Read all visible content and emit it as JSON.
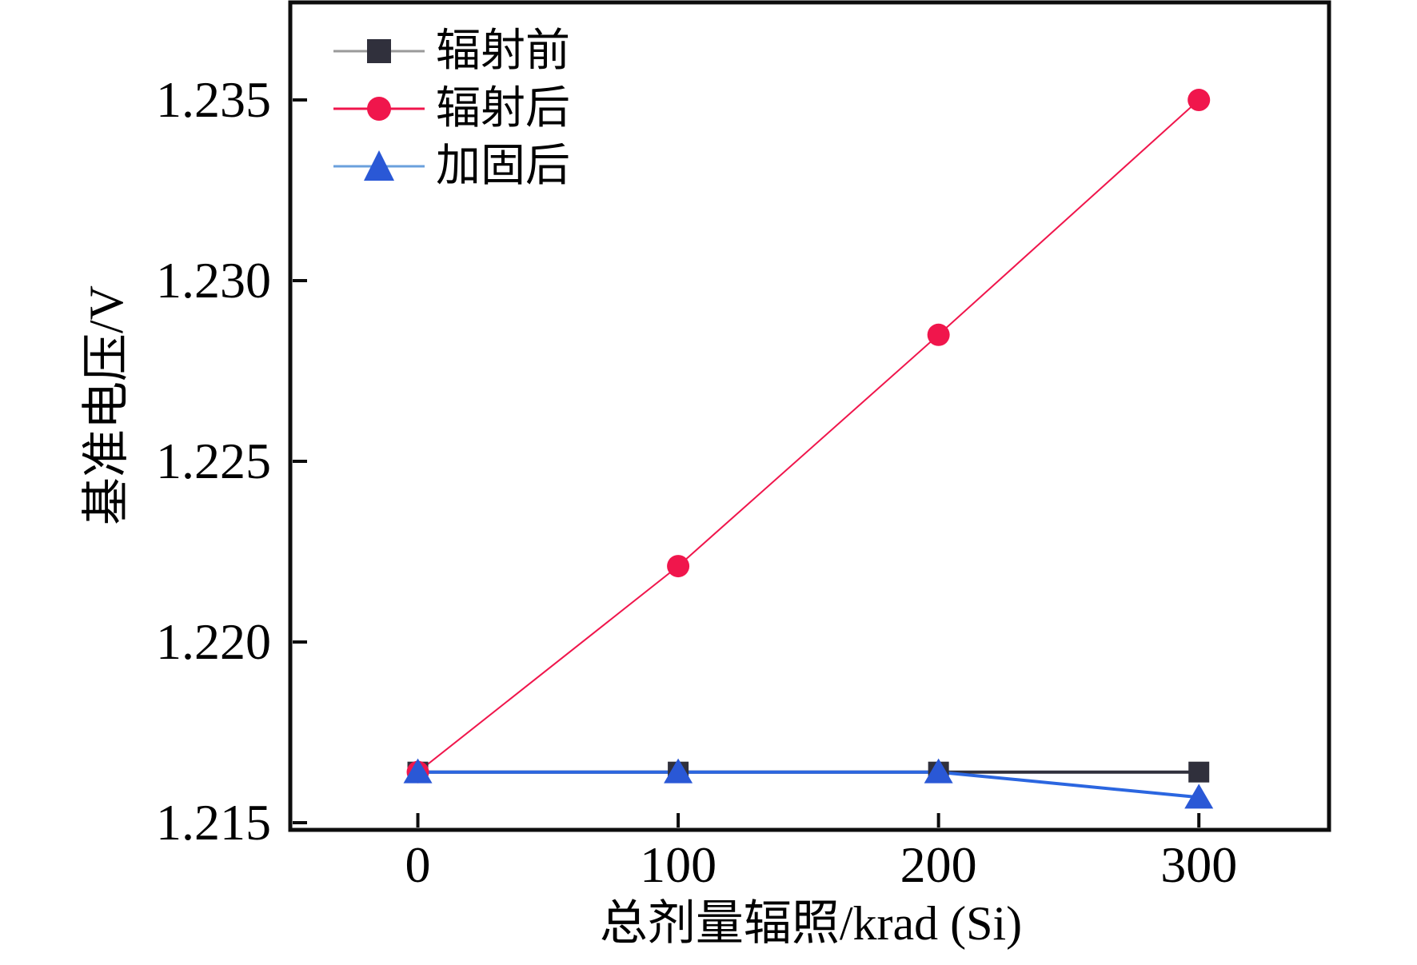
{
  "figure": {
    "background": "#ffffff",
    "axis_color": "#0d0d0d",
    "text_color": "#000000"
  },
  "chart_data": {
    "type": "line",
    "title": "",
    "xlabel": "总剂量辐照/krad (Si)",
    "ylabel": "基准电压/V",
    "x": [
      0,
      100,
      200,
      300
    ],
    "series": [
      {
        "name": "辐射前",
        "marker": "square",
        "marker_color": "#30303c",
        "line_color": "#30303c",
        "legend_line_color": "#9a9a9a",
        "line_width": 4,
        "values": [
          1.2164,
          1.2164,
          1.2164,
          1.2164
        ]
      },
      {
        "name": "辐射后",
        "marker": "circle",
        "marker_color": "#f0164c",
        "line_color": "#f0164c",
        "legend_line_color": "#f0164c",
        "line_width": 2,
        "values": [
          1.2164,
          1.2221,
          1.2285,
          1.235
        ]
      },
      {
        "name": "加固后",
        "marker": "triangle",
        "marker_color": "#2a58d6",
        "line_color": "#2b66e0",
        "legend_line_color": "#6aa0dc",
        "line_width": 4,
        "values": [
          1.2164,
          1.2164,
          1.2164,
          1.2157
        ]
      }
    ],
    "xaxis": {
      "range": [
        -49,
        350
      ],
      "ticks": [
        0,
        100,
        200,
        300
      ],
      "tick_labels": [
        "0",
        "100",
        "200",
        "300"
      ]
    },
    "yaxis": {
      "range": [
        1.2148,
        1.2377
      ],
      "ticks": [
        1.215,
        1.22,
        1.225,
        1.23,
        1.235
      ],
      "tick_labels": [
        "1.215",
        "1.220",
        "1.225",
        "1.230",
        "1.235"
      ]
    },
    "legend": {
      "position": "top-left",
      "entries": [
        "辐射前",
        "辐射后",
        "加固后"
      ]
    },
    "grid": false
  }
}
